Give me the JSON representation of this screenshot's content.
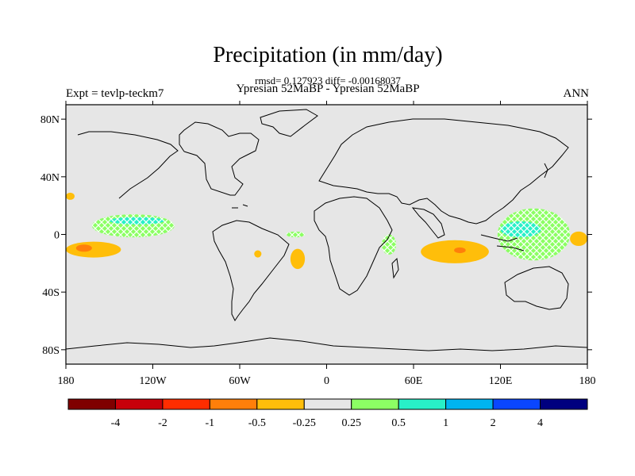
{
  "chart_data": {
    "type": "heatmap",
    "title": "Precipitation (in mm/day)",
    "subtitle_stats": "rmsd= 0.127923 diff= -0.00168037",
    "subtitle_comparison": "Ypresian  52MaBP - Ypresian  52MaBP",
    "left_label": "Expt = tevlp-teckm7",
    "right_label": "ANN",
    "xlim": [
      -180,
      180
    ],
    "ylim": [
      -90,
      90
    ],
    "x_ticks": [
      {
        "value": -180,
        "label": "180"
      },
      {
        "value": -120,
        "label": "120W"
      },
      {
        "value": -60,
        "label": "60W"
      },
      {
        "value": 0,
        "label": "0"
      },
      {
        "value": 60,
        "label": "60E"
      },
      {
        "value": 120,
        "label": "120E"
      },
      {
        "value": 180,
        "label": "180"
      }
    ],
    "y_ticks": [
      {
        "value": 80,
        "label": "80N"
      },
      {
        "value": 40,
        "label": "40N"
      },
      {
        "value": 0,
        "label": "0"
      },
      {
        "value": -40,
        "label": "40S"
      },
      {
        "value": -80,
        "label": "80S"
      }
    ],
    "colorbar": {
      "colors": [
        "#7f0000",
        "#c8000a",
        "#ff2d00",
        "#ff7f0a",
        "#ffbe0a",
        "#e6e6e6",
        "#8cff64",
        "#28f0c8",
        "#00b4f0",
        "#0a46ff",
        "#00007f"
      ],
      "labels": [
        "-4",
        "-2",
        "-1",
        "-0.5",
        "-0.25",
        "0.25",
        "0.5",
        "1",
        "2",
        "4"
      ]
    },
    "anomaly_regions": [
      {
        "name": "central-pacific-south-orange",
        "lon": [
          -180,
          -142
        ],
        "lat": [
          -16,
          -5
        ],
        "value": -0.4
      },
      {
        "name": "central-pacific-south-core",
        "lon": [
          -173,
          -162
        ],
        "lat": [
          -12,
          -7
        ],
        "value": -0.7
      },
      {
        "name": "north-pacific-orange",
        "lon": [
          -180,
          -174
        ],
        "lat": [
          24,
          29
        ],
        "value": -0.3
      },
      {
        "name": "pacific-itcz-green",
        "lon": [
          -162,
          -105
        ],
        "lat": [
          -2,
          14
        ],
        "value": 0.35
      },
      {
        "name": "pacific-itcz-cyan",
        "lon": [
          -150,
          -112
        ],
        "lat": [
          7,
          12
        ],
        "value": 0.6
      },
      {
        "name": "brazil-orange",
        "lon": [
          -50,
          -45
        ],
        "lat": [
          -16,
          -11
        ],
        "value": -0.3
      },
      {
        "name": "atlantic-orange",
        "lon": [
          -25,
          -15
        ],
        "lat": [
          -24,
          -10
        ],
        "value": -0.4
      },
      {
        "name": "atlantic-green-spots",
        "lon": [
          -28,
          -15
        ],
        "lat": [
          -2,
          2
        ],
        "value": 0.3
      },
      {
        "name": "west-indian-ocean-green",
        "lon": [
          38,
          48
        ],
        "lat": [
          -14,
          0
        ],
        "value": 0.3
      },
      {
        "name": "indian-ocean-orange",
        "lon": [
          65,
          112
        ],
        "lat": [
          -20,
          -4
        ],
        "value": -0.35
      },
      {
        "name": "indian-ocean-core",
        "lon": [
          88,
          96
        ],
        "lat": [
          -13,
          -9
        ],
        "value": -0.7
      },
      {
        "name": "indo-pacific-green",
        "lon": [
          118,
          168
        ],
        "lat": [
          -18,
          18
        ],
        "value": 0.35
      },
      {
        "name": "indo-pacific-cyan",
        "lon": [
          120,
          148
        ],
        "lat": [
          -2,
          9
        ],
        "value": 0.7
      },
      {
        "name": "east-pacific-orange",
        "lon": [
          168,
          180
        ],
        "lat": [
          -8,
          2
        ],
        "value": -0.3
      }
    ]
  }
}
